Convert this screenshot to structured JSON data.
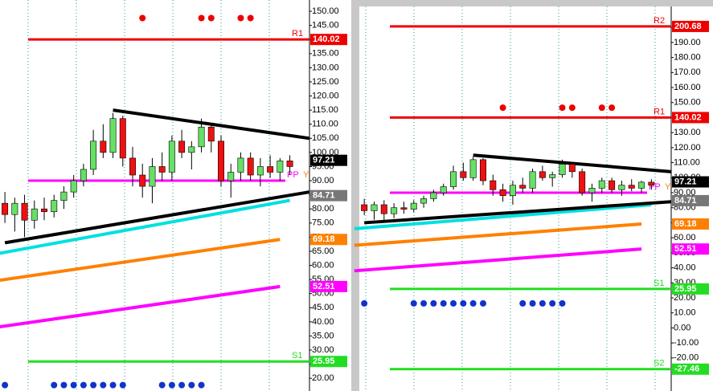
{
  "chart_data": [
    {
      "type": "candlestick",
      "xlim": [
        0.5,
        32
      ],
      "ylim": [
        15.5,
        154
      ],
      "yticks": [
        {
          "value": 20,
          "label": "20.00"
        },
        {
          "value": 25,
          "label": "25.00"
        },
        {
          "value": 30,
          "label": "30.00"
        },
        {
          "value": 35,
          "label": "35.00"
        },
        {
          "value": 40,
          "label": "40.00"
        },
        {
          "value": 45,
          "label": "45.00"
        },
        {
          "value": 50,
          "label": "50.00"
        },
        {
          "value": 55,
          "label": "55.00"
        },
        {
          "value": 60,
          "label": "60.00"
        },
        {
          "value": 65,
          "label": "65.00"
        },
        {
          "value": 70,
          "label": "70.00"
        },
        {
          "value": 75,
          "label": "75.00"
        },
        {
          "value": 80,
          "label": "80.00"
        },
        {
          "value": 85,
          "label": "85.00"
        },
        {
          "value": 90,
          "label": "90.00"
        },
        {
          "value": 95,
          "label": "95.00"
        },
        {
          "value": 100,
          "label": "100.00"
        },
        {
          "value": 105,
          "label": "105.00"
        },
        {
          "value": 110,
          "label": "110.00"
        },
        {
          "value": 115,
          "label": "115.00"
        },
        {
          "value": 120,
          "label": "120.00"
        },
        {
          "value": 125,
          "label": "125.00"
        },
        {
          "value": 130,
          "label": "130.00"
        },
        {
          "value": 135,
          "label": "135.00"
        },
        {
          "value": 140,
          "label": "140.00"
        },
        {
          "value": 145,
          "label": "145.00"
        },
        {
          "value": 150,
          "label": "150.00"
        }
      ],
      "open": [
        82,
        78,
        82,
        76,
        80,
        79,
        83,
        86,
        90,
        94,
        104,
        100,
        112,
        98,
        92,
        88,
        95,
        93,
        104,
        100,
        102,
        109,
        104,
        90,
        93,
        98,
        92,
        95,
        93,
        97
      ],
      "high": [
        86,
        84,
        85,
        83,
        84,
        85,
        88,
        92,
        96,
        108,
        110,
        114,
        113,
        102,
        96,
        98,
        100,
        106,
        108,
        104,
        112,
        110,
        106,
        96,
        100,
        100,
        98,
        99,
        98,
        99
      ],
      "low": [
        75,
        72,
        70,
        73,
        76,
        77,
        80,
        84,
        88,
        92,
        98,
        98,
        95,
        88,
        84,
        82,
        90,
        90,
        98,
        94,
        100,
        100,
        88,
        84,
        90,
        90,
        88,
        91,
        90,
        92
      ],
      "close": [
        78,
        82,
        76,
        80,
        79,
        83,
        86,
        90,
        94,
        104,
        100,
        112,
        98,
        92,
        88,
        95,
        93,
        104,
        100,
        102,
        109,
        104,
        90,
        93,
        98,
        92,
        95,
        93,
        97,
        95
      ],
      "lines": [
        {
          "color": "#ff8000",
          "x": [
            0,
            29
          ],
          "values": [
            54.5,
            69.18
          ]
        },
        {
          "color": "#ff00ff",
          "x": [
            0,
            29
          ],
          "values": [
            38,
            52.51
          ]
        },
        {
          "color": "#00e0e0",
          "x": [
            0,
            30
          ],
          "values": [
            64,
            83
          ]
        },
        {
          "color": "#000000",
          "x": [
            12,
            32
          ],
          "values": [
            115,
            105
          ]
        },
        {
          "color": "#000000",
          "x": [
            1,
            32
          ],
          "values": [
            68,
            86
          ]
        }
      ],
      "levels": [
        {
          "name": "R1",
          "value": 140.02,
          "color": "#ee0000"
        },
        {
          "name": "PP",
          "value": 90,
          "color": "#ff00ff"
        },
        {
          "name": "S1",
          "value": 25.95,
          "color": "#22dd22"
        }
      ],
      "annotation": "Y",
      "price_labels": [
        {
          "value": 140.02,
          "label": "140.02",
          "color": "#ee0000"
        },
        {
          "value": 97.21,
          "label": "97.21",
          "color": "#000000"
        },
        {
          "value": 84.71,
          "label": "84.71",
          "color": "#777777"
        },
        {
          "value": 69.18,
          "label": "69.18",
          "color": "#ff8000"
        },
        {
          "value": 52.51,
          "label": "52.51",
          "color": "#ff00ff"
        },
        {
          "value": 25.95,
          "label": "25.95",
          "color": "#22dd22"
        }
      ],
      "red_dots": {
        "x": [
          15,
          21,
          22,
          25,
          26
        ],
        "y": 147.6
      },
      "blue_dots": {
        "x": [
          1,
          6,
          7,
          8,
          9,
          10,
          11,
          12,
          13,
          17,
          18,
          19,
          20,
          21
        ],
        "y": 17.6
      }
    },
    {
      "type": "candlestick",
      "xlim": [
        0.5,
        32
      ],
      "ylim": [
        -42,
        214
      ],
      "yticks": [
        {
          "value": -20,
          "label": "-20.00"
        },
        {
          "value": -10,
          "label": "-10.00"
        },
        {
          "value": 0,
          "label": "0.00"
        },
        {
          "value": 10,
          "label": "10.00"
        },
        {
          "value": 20,
          "label": "20.00"
        },
        {
          "value": 30,
          "label": "30.00"
        },
        {
          "value": 40,
          "label": "40.00"
        },
        {
          "value": 50,
          "label": "50.00"
        },
        {
          "value": 60,
          "label": "60.00"
        },
        {
          "value": 70,
          "label": "70.00"
        },
        {
          "value": 80,
          "label": "80.00"
        },
        {
          "value": 90,
          "label": "90.00"
        },
        {
          "value": 100,
          "label": "100.00"
        },
        {
          "value": 110,
          "label": "110.00"
        },
        {
          "value": 120,
          "label": "120.00"
        },
        {
          "value": 130,
          "label": "130.00"
        },
        {
          "value": 140,
          "label": "140.00"
        },
        {
          "value": 150,
          "label": "150.00"
        },
        {
          "value": 160,
          "label": "160.00"
        },
        {
          "value": 170,
          "label": "170.00"
        },
        {
          "value": 180,
          "label": "180.00"
        },
        {
          "value": 190,
          "label": "190.00"
        },
        {
          "value": 200,
          "label": "200.00"
        }
      ],
      "open": [
        82,
        78,
        82,
        76,
        80,
        79,
        83,
        86,
        90,
        94,
        104,
        100,
        112,
        98,
        92,
        88,
        95,
        93,
        104,
        100,
        102,
        109,
        104,
        90,
        93,
        98,
        92,
        95,
        93,
        97
      ],
      "high": [
        86,
        84,
        85,
        83,
        84,
        85,
        88,
        92,
        96,
        108,
        110,
        114,
        113,
        102,
        96,
        98,
        100,
        106,
        108,
        104,
        112,
        110,
        106,
        96,
        100,
        100,
        98,
        99,
        98,
        99
      ],
      "low": [
        75,
        72,
        70,
        73,
        76,
        77,
        80,
        84,
        88,
        92,
        98,
        98,
        95,
        88,
        84,
        82,
        90,
        90,
        98,
        94,
        100,
        100,
        88,
        84,
        90,
        90,
        88,
        91,
        90,
        92
      ],
      "close": [
        78,
        82,
        76,
        80,
        79,
        83,
        86,
        90,
        94,
        104,
        100,
        112,
        98,
        92,
        88,
        95,
        93,
        104,
        100,
        102,
        109,
        104,
        90,
        93,
        98,
        92,
        95,
        93,
        97,
        95
      ],
      "lines": [
        {
          "color": "#ff8000",
          "x": [
            0,
            29
          ],
          "values": [
            55,
            69.18
          ]
        },
        {
          "color": "#ff00ff",
          "x": [
            0,
            29
          ],
          "values": [
            38,
            52.51
          ]
        },
        {
          "color": "#00e0e0",
          "x": [
            0,
            30
          ],
          "values": [
            66,
            82
          ]
        },
        {
          "color": "#000000",
          "x": [
            12,
            32
          ],
          "values": [
            115,
            104
          ]
        },
        {
          "color": "#000000",
          "x": [
            1,
            32
          ],
          "values": [
            70,
            84
          ]
        }
      ],
      "levels": [
        {
          "name": "R2",
          "value": 200.68,
          "color": "#ee0000"
        },
        {
          "name": "R1",
          "value": 140.02,
          "color": "#ee0000"
        },
        {
          "name": "PP",
          "value": 90,
          "color": "#ff00ff"
        },
        {
          "name": "S1",
          "value": 25.95,
          "color": "#22dd22"
        },
        {
          "name": "S2",
          "value": -27.46,
          "color": "#22dd22"
        }
      ],
      "annotation": "Y",
      "price_labels": [
        {
          "value": 200.68,
          "label": "200.68",
          "color": "#ee0000"
        },
        {
          "value": 140.02,
          "label": "140.02",
          "color": "#ee0000"
        },
        {
          "value": 97.21,
          "label": "97.21",
          "color": "#000000"
        },
        {
          "value": 84.71,
          "label": "84.71",
          "color": "#777777"
        },
        {
          "value": 69.18,
          "label": "69.18",
          "color": "#ff8000"
        },
        {
          "value": 52.51,
          "label": "52.51",
          "color": "#ff00ff"
        },
        {
          "value": 25.95,
          "label": "25.95",
          "color": "#22dd22"
        },
        {
          "value": -27.46,
          "label": "-27.46",
          "color": "#22dd22"
        }
      ],
      "red_dots": {
        "x": [
          15,
          21,
          22,
          25,
          26
        ],
        "y": 146.6
      },
      "blue_dots": {
        "x": [
          1,
          6,
          7,
          8,
          9,
          10,
          11,
          12,
          13,
          17,
          18,
          19,
          20,
          21
        ],
        "y": 16.3
      }
    }
  ]
}
